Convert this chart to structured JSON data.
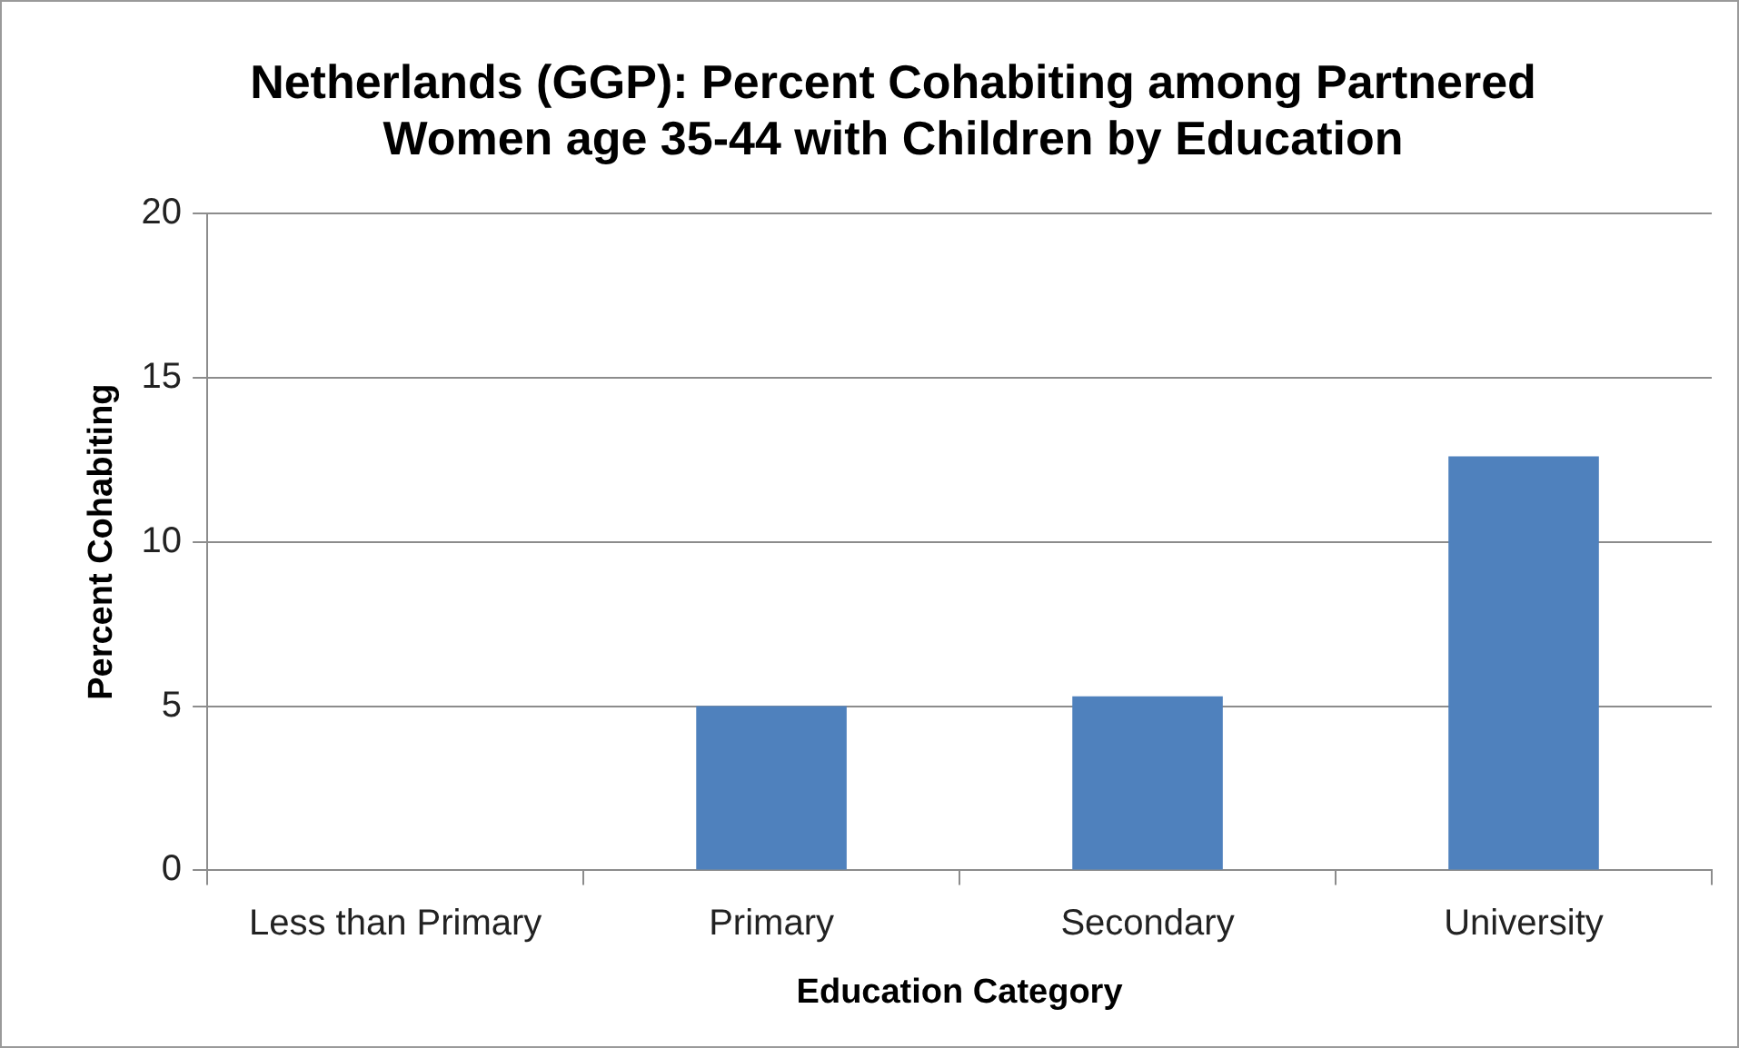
{
  "chart_data": {
    "type": "bar",
    "title": "Netherlands (GGP): Percent Cohabiting among Partnered Women age 35-44 with Children by Education",
    "xlabel": "Education Category",
    "ylabel": "Percent Cohabiting",
    "categories": [
      "Less than Primary",
      "Primary",
      "Secondary",
      "University"
    ],
    "values": [
      0,
      5.0,
      5.3,
      12.6
    ],
    "color": "#4f81bd",
    "ylim": [
      0,
      20
    ],
    "yticks": [
      0,
      5,
      10,
      15,
      20
    ],
    "grid": "y",
    "legend": false
  }
}
